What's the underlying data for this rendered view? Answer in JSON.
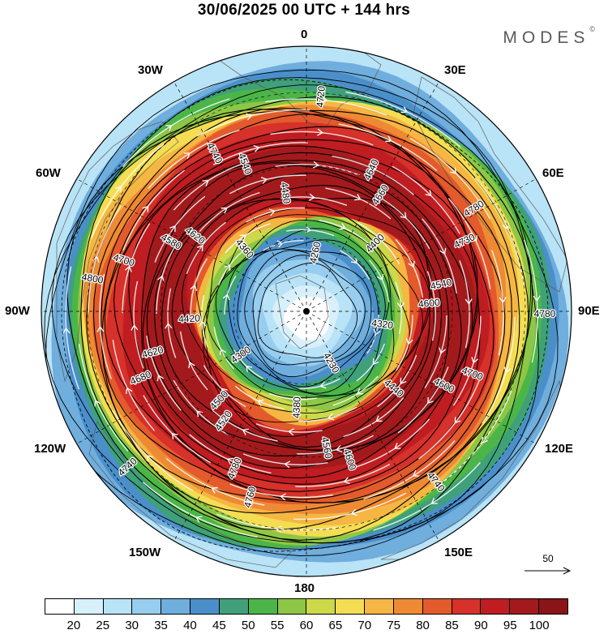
{
  "title": "30/06/2025  00 UTC  + 144 hrs",
  "brand": "MODES",
  "brand_mark": "©",
  "longitude_labels": {
    "top": "0",
    "e30": "30E",
    "e60": "60E",
    "e90": "90E",
    "e120": "120E",
    "e150": "150E",
    "bottom": "180",
    "w150": "150W",
    "w120": "120W",
    "w90": "90W",
    "w60": "60W",
    "w30": "30W"
  },
  "map": {
    "projection": "polar stereographic",
    "field_shaded": "wind speed",
    "field_contours": "geopotential height",
    "contour_labels": [
      "4780",
      "4740",
      "4720",
      "4740",
      "4800",
      "4780",
      "4760",
      "4740",
      "4700",
      "4680",
      "4640",
      "4600",
      "4580",
      "4540",
      "4520",
      "4480",
      "4440",
      "4420",
      "4400",
      "4380",
      "4360",
      "4320",
      "4300",
      "4260",
      "4230",
      "4700",
      "4730",
      "4780",
      "4540",
      "4600",
      "4620",
      "4660",
      "4560",
      "4620",
      "4600",
      "4500"
    ],
    "colors": {
      "land_outline": "#555555",
      "contour": "#000000",
      "streamline": "#ffffff"
    }
  },
  "reference_vector": {
    "value": "50"
  },
  "colorbar": {
    "labels": [
      "20",
      "25",
      "30",
      "35",
      "40",
      "45",
      "50",
      "55",
      "60",
      "65",
      "70",
      "75",
      "80",
      "85",
      "90",
      "95",
      "100"
    ],
    "colors": [
      "#ffffff",
      "#d8f0fb",
      "#b9e3f6",
      "#97cdee",
      "#6faedd",
      "#4b8fca",
      "#3fa07a",
      "#4cb548",
      "#8ec646",
      "#cbd94a",
      "#f4dd52",
      "#f5b643",
      "#ee8a33",
      "#e35a2c",
      "#d6312a",
      "#bf1d21",
      "#a31a1d",
      "#8b1418"
    ]
  }
}
